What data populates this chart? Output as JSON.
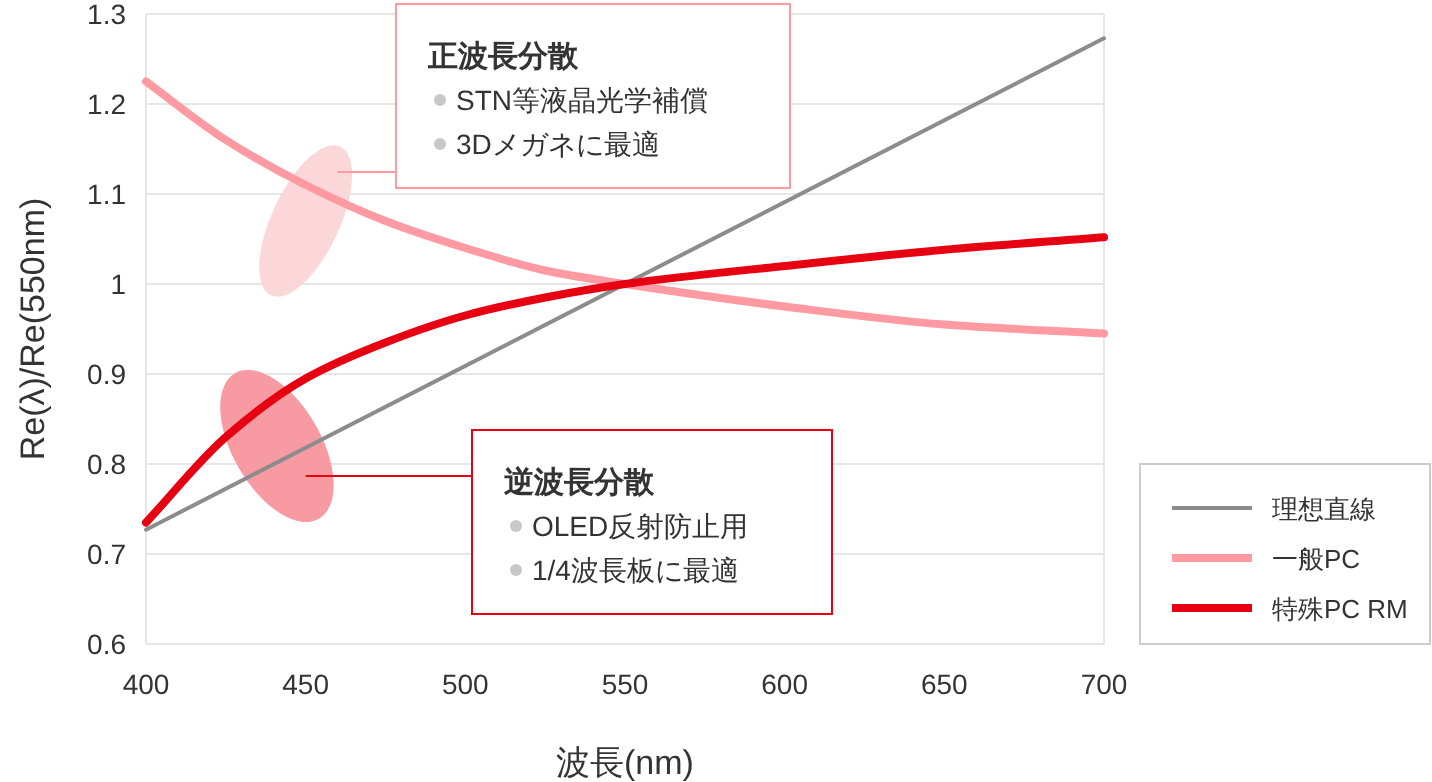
{
  "chart_data": {
    "type": "line",
    "xlabel": "波長(nm)",
    "ylabel": "Re(λ)/Re(550nm)",
    "xlim": [
      400,
      700
    ],
    "xticks": [
      400,
      450,
      500,
      550,
      600,
      650,
      700
    ],
    "ylim": [
      0.6,
      1.3
    ],
    "yticks": [
      0.6,
      0.7,
      0.8,
      0.9,
      1,
      1.1,
      1.2,
      1.3
    ],
    "grid": "y",
    "legend": "bottom right",
    "marker": "none",
    "line_style": "solid",
    "series": [
      {
        "name": "理想直線",
        "color": "#8c8c8c",
        "x": [
          400,
          700
        ],
        "values": [
          0.727,
          1.273
        ]
      },
      {
        "name": "一般PC",
        "color": "#ff9aa2",
        "x": [
          400,
          425,
          450,
          475,
          500,
          525,
          550,
          600,
          650,
          700
        ],
        "values": [
          1.225,
          1.16,
          1.11,
          1.07,
          1.04,
          1.015,
          1.0,
          0.975,
          0.955,
          0.945
        ]
      },
      {
        "name": "特殊PC RM",
        "color": "#e60012",
        "x": [
          400,
          425,
          450,
          475,
          500,
          525,
          550,
          600,
          650,
          700
        ],
        "values": [
          0.735,
          0.83,
          0.895,
          0.935,
          0.965,
          0.985,
          1.0,
          1.02,
          1.038,
          1.052
        ]
      }
    ],
    "annotations": [
      "正波長分散\nSTN等液晶光学補償\n3Dメガネに最適",
      "逆波長分散\nOLED反射防止用\n1/4波長板に最適"
    ]
  }
}
